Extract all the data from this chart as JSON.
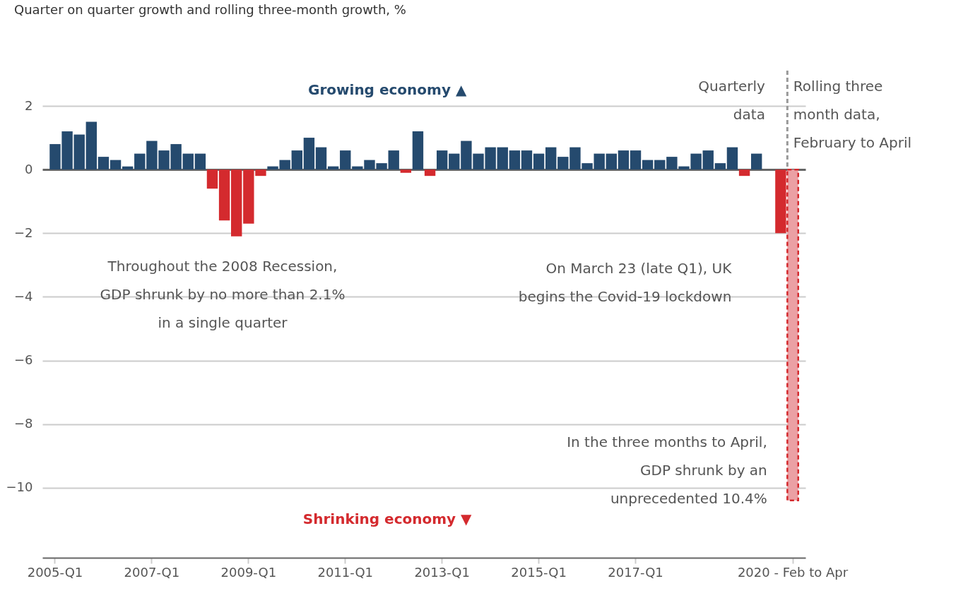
{
  "chart_data": {
    "type": "bar",
    "title": "Quarter on quarter growth and rolling three-month growth, %",
    "categories": [
      "2005-Q1",
      null,
      null,
      null,
      null,
      null,
      null,
      null,
      "2007-Q1",
      null,
      null,
      null,
      null,
      null,
      null,
      null,
      "2009-Q1",
      null,
      null,
      null,
      null,
      null,
      null,
      null,
      "2011-Q1",
      null,
      null,
      null,
      null,
      null,
      null,
      null,
      "2013-Q1",
      null,
      null,
      null,
      null,
      null,
      null,
      null,
      "2015-Q1",
      null,
      null,
      null,
      null,
      null,
      null,
      null,
      "2017-Q1",
      null,
      null,
      null,
      null,
      null,
      null,
      null,
      null,
      null,
      null,
      null,
      null,
      "2020 - Feb to Apr"
    ],
    "series": [
      {
        "values": [
          0.8,
          1.2,
          1.1,
          1.5,
          0.4,
          0.3,
          0.1,
          0.5,
          0.9,
          0.6,
          0.8,
          0.5,
          0.5,
          -0.6,
          -1.6,
          -2.1,
          -1.7,
          -0.2,
          0.1,
          0.3,
          0.6,
          1.0,
          0.7,
          0.1,
          0.6,
          0.1,
          0.3,
          0.2,
          0.6,
          -0.1,
          1.2,
          -0.2,
          0.6,
          0.5,
          0.9,
          0.5,
          0.7,
          0.7,
          0.6,
          0.6,
          0.5,
          0.7,
          0.4,
          0.7,
          0.2,
          0.5,
          0.5,
          0.6,
          0.6,
          0.3,
          0.3,
          0.4,
          0.1,
          0.5,
          0.6,
          0.2,
          0.7,
          -0.2,
          0.5,
          0.0,
          -2.0,
          null
        ],
        "colors": [
          "#254a6e",
          "#254a6e",
          "#254a6e",
          "#254a6e",
          "#254a6e",
          "#254a6e",
          "#254a6e",
          "#254a6e",
          "#254a6e",
          "#254a6e",
          "#254a6e",
          "#254a6e",
          "#254a6e",
          "#d42a2e",
          "#d42a2e",
          "#d42a2e",
          "#d42a2e",
          "#d42a2e",
          "#254a6e",
          "#254a6e",
          "#254a6e",
          "#254a6e",
          "#254a6e",
          "#254a6e",
          "#254a6e",
          "#254a6e",
          "#254a6e",
          "#254a6e",
          "#254a6e",
          "#d42a2e",
          "#254a6e",
          "#d42a2e",
          "#254a6e",
          "#254a6e",
          "#254a6e",
          "#254a6e",
          "#254a6e",
          "#254a6e",
          "#254a6e",
          "#254a6e",
          "#254a6e",
          "#254a6e",
          "#254a6e",
          "#254a6e",
          "#254a6e",
          "#254a6e",
          "#254a6e",
          "#254a6e",
          "#254a6e",
          "#254a6e",
          "#254a6e",
          "#254a6e",
          "#254a6e",
          "#254a6e",
          "#254a6e",
          "#254a6e",
          "#254a6e",
          "#d42a2e",
          "#254a6e",
          "#254a6e",
          "#d42a2e",
          null
        ]
      },
      {
        "color": "#eba0a4",
        "line_style": "dashed",
        "values": [
          null,
          null,
          null,
          null,
          null,
          null,
          null,
          null,
          null,
          null,
          null,
          null,
          null,
          null,
          null,
          null,
          null,
          null,
          null,
          null,
          null,
          null,
          null,
          null,
          null,
          null,
          null,
          null,
          null,
          null,
          null,
          null,
          null,
          null,
          null,
          null,
          null,
          null,
          null,
          null,
          null,
          null,
          null,
          null,
          null,
          null,
          null,
          null,
          null,
          null,
          null,
          null,
          null,
          null,
          null,
          null,
          null,
          null,
          null,
          null,
          null,
          -10.4
        ]
      }
    ],
    "ylim": [
      -12.2,
      2
    ],
    "yticks": [
      -10,
      -8,
      -6,
      -4,
      -2,
      0,
      2
    ],
    "grid": "y",
    "ref_lines": [
      {
        "axis": "x",
        "value": "2020 - Feb to Apr",
        "color": "#999999",
        "line_style": "dashed"
      }
    ],
    "annotations": [
      "Growing economy ▲",
      "Shrinking economy ▼",
      "Throughout the 2008 Recession, GDP shrunk by no more than 2.1% in a single quarter",
      "On March 23 (late Q1), UK begins the Covid-19 lockdown",
      "In the three months to April, GDP shrunk by an unprecedented 10.4%",
      "Quarterly data",
      "Rolling three month data, February to April"
    ]
  }
}
